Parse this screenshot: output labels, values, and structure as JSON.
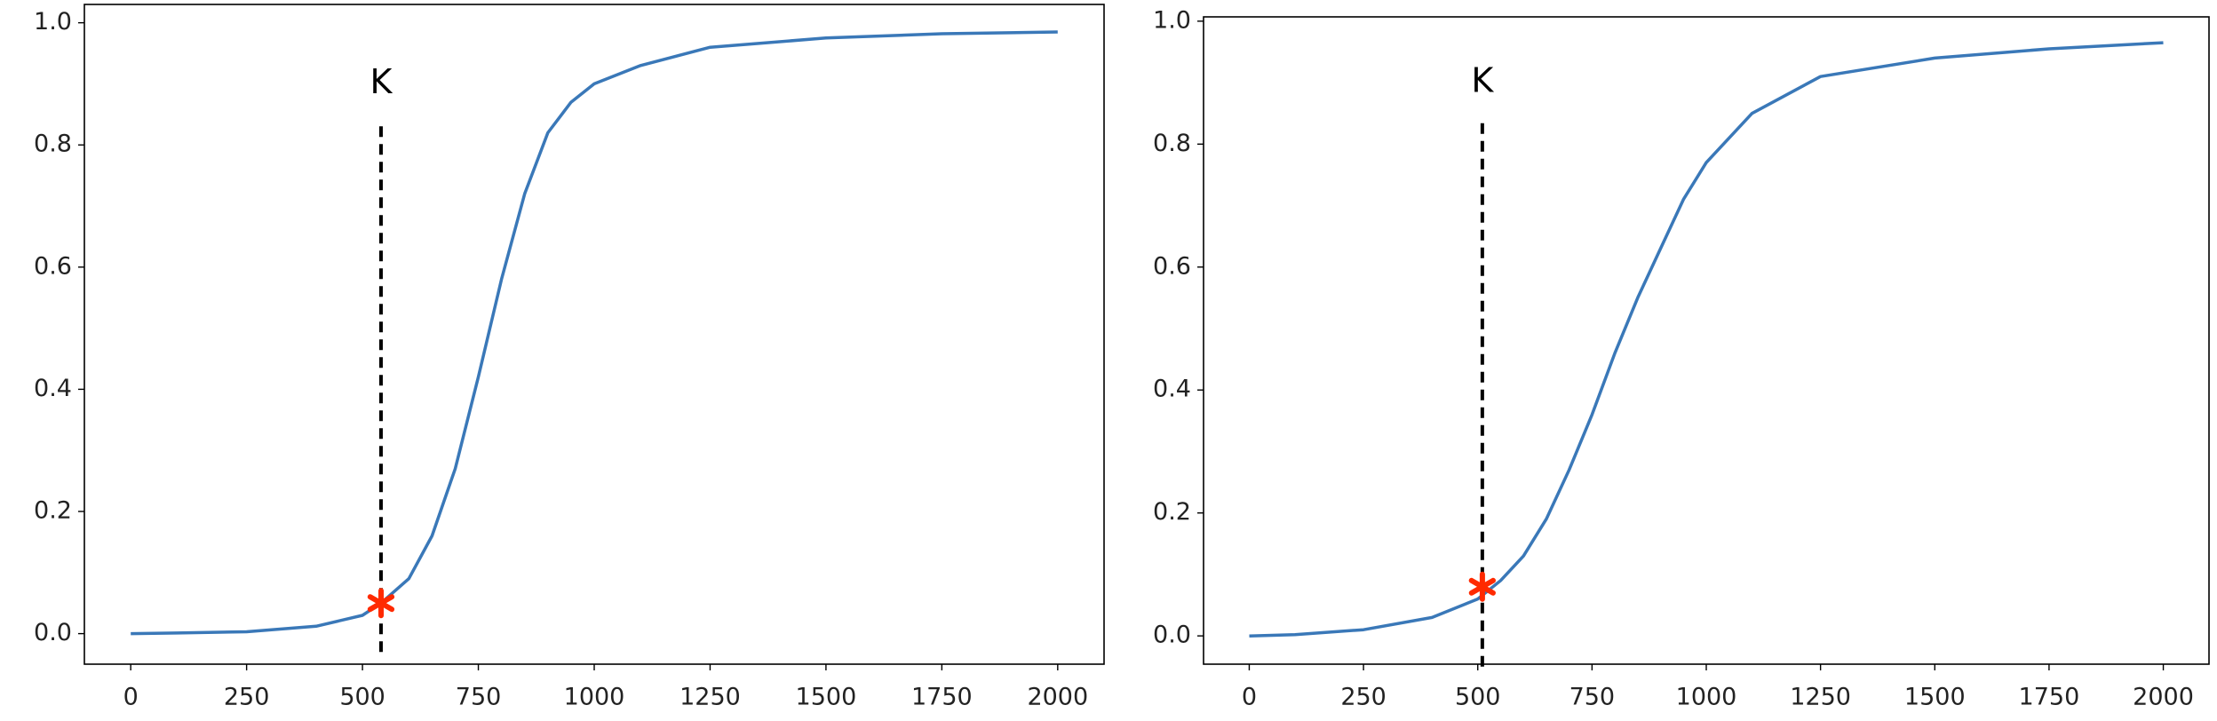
{
  "chart_data": [
    {
      "type": "line",
      "x": [
        0,
        100,
        250,
        400,
        500,
        540,
        600,
        650,
        700,
        750,
        800,
        850,
        900,
        950,
        1000,
        1100,
        1250,
        1500,
        1750,
        2000
      ],
      "series": [
        {
          "color": "#3a78b8",
          "values": [
            0,
            0.001,
            0.003,
            0.012,
            0.03,
            0.05,
            0.09,
            0.16,
            0.27,
            0.42,
            0.58,
            0.72,
            0.82,
            0.87,
            0.9,
            0.93,
            0.96,
            0.975,
            0.982,
            0.985
          ]
        }
      ],
      "xlim": [
        -100,
        2100
      ],
      "ylim": [
        -0.05,
        1.03
      ],
      "xticks": [
        0,
        250,
        500,
        750,
        1000,
        1250,
        1500,
        1750,
        2000
      ],
      "yticks": [
        {
          "value": 0,
          "label": "0.0"
        },
        {
          "value": 0.2,
          "label": "0.2"
        },
        {
          "value": 0.4,
          "label": "0.4"
        },
        {
          "value": 0.6,
          "label": "0.6"
        },
        {
          "value": 0.8,
          "label": "0.8"
        },
        {
          "value": 1,
          "label": "1.0"
        }
      ],
      "vline": {
        "x": 540,
        "y": [
          -0.03,
          0.84
        ],
        "color": "#000"
      },
      "marker": {
        "x": 540,
        "y": 0.05,
        "color": "#ff2a00"
      },
      "annotation": {
        "text": "K",
        "x": 540,
        "y": 0.9
      }
    },
    {
      "type": "line",
      "x": [
        0,
        100,
        250,
        400,
        500,
        550,
        600,
        650,
        700,
        750,
        800,
        850,
        900,
        950,
        1000,
        1100,
        1250,
        1500,
        1750,
        2000
      ],
      "series": [
        {
          "color": "#3a78b8",
          "values": [
            0,
            0.002,
            0.01,
            0.03,
            0.06,
            0.09,
            0.13,
            0.19,
            0.27,
            0.36,
            0.46,
            0.55,
            0.63,
            0.71,
            0.77,
            0.85,
            0.91,
            0.94,
            0.955,
            0.965
          ]
        }
      ],
      "xlim": [
        -100,
        2100
      ],
      "ylim": [
        -0.046,
        1.007
      ],
      "xticks": [
        0,
        250,
        500,
        750,
        1000,
        1250,
        1500,
        1750,
        2000
      ],
      "yticks": [
        {
          "value": 0,
          "label": "0.0"
        },
        {
          "value": 0.2,
          "label": "0.2"
        },
        {
          "value": 0.4,
          "label": "0.4"
        },
        {
          "value": 0.6,
          "label": "0.6"
        },
        {
          "value": 0.8,
          "label": "0.8"
        },
        {
          "value": 1,
          "label": "1.0"
        }
      ],
      "vline": {
        "x": 510,
        "y": [
          -0.05,
          0.84
        ],
        "color": "#000"
      },
      "marker": {
        "x": 510,
        "y": 0.08,
        "color": "#ff2a00"
      },
      "annotation": {
        "text": "K",
        "x": 510,
        "y": 0.9
      }
    }
  ]
}
